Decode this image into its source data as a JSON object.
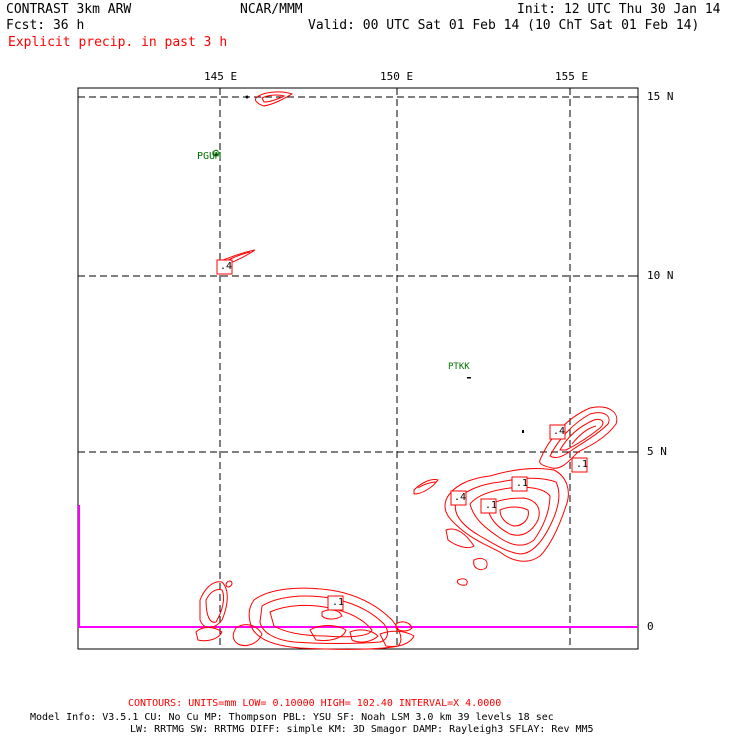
{
  "header": {
    "left_line1": "CONTRAST  3km ARW",
    "left_line2": "Fcst:   36 h",
    "center": "NCAR/MMM",
    "init": "Init: 12 UTC Thu 30 Jan 14",
    "valid": "Valid: 00 UTC Sat 01 Feb 14 (10 ChT Sat 01 Feb 14)",
    "field": "Explicit precip. in past 3 h"
  },
  "axes": {
    "lon_labels": [
      "145 E",
      "150 E",
      "155 E"
    ],
    "lat_labels": [
      "15 N",
      "10 N",
      "5 N",
      "0"
    ]
  },
  "stations": {
    "guam": "PGUM",
    "chuuk": "PTKK"
  },
  "contour_labels": [
    ".4",
    ".1",
    ".4",
    ".1",
    ".1",
    ".4",
    ".1"
  ],
  "footer": {
    "contours": "CONTOURS:  UNITS=mm  LOW= 0.10000      HIGH=  102.40      INTERVAL=X  4.0000",
    "model_line1": "Model Info: V3.5.1    CU: No Cu     MP: Thompson     PBL: YSU       SF: Noah LSM     3.0 km   39 levels   18 sec",
    "model_line2": "LW: RRTMG     SW: RRTMG   DIFF: simple KM: 3D Smagor DAMP: Rayleigh3  SFLAY: Rev MM5"
  },
  "colors": {
    "contour": "#ff0000",
    "station": "#007000",
    "line": "#ff00ff"
  }
}
